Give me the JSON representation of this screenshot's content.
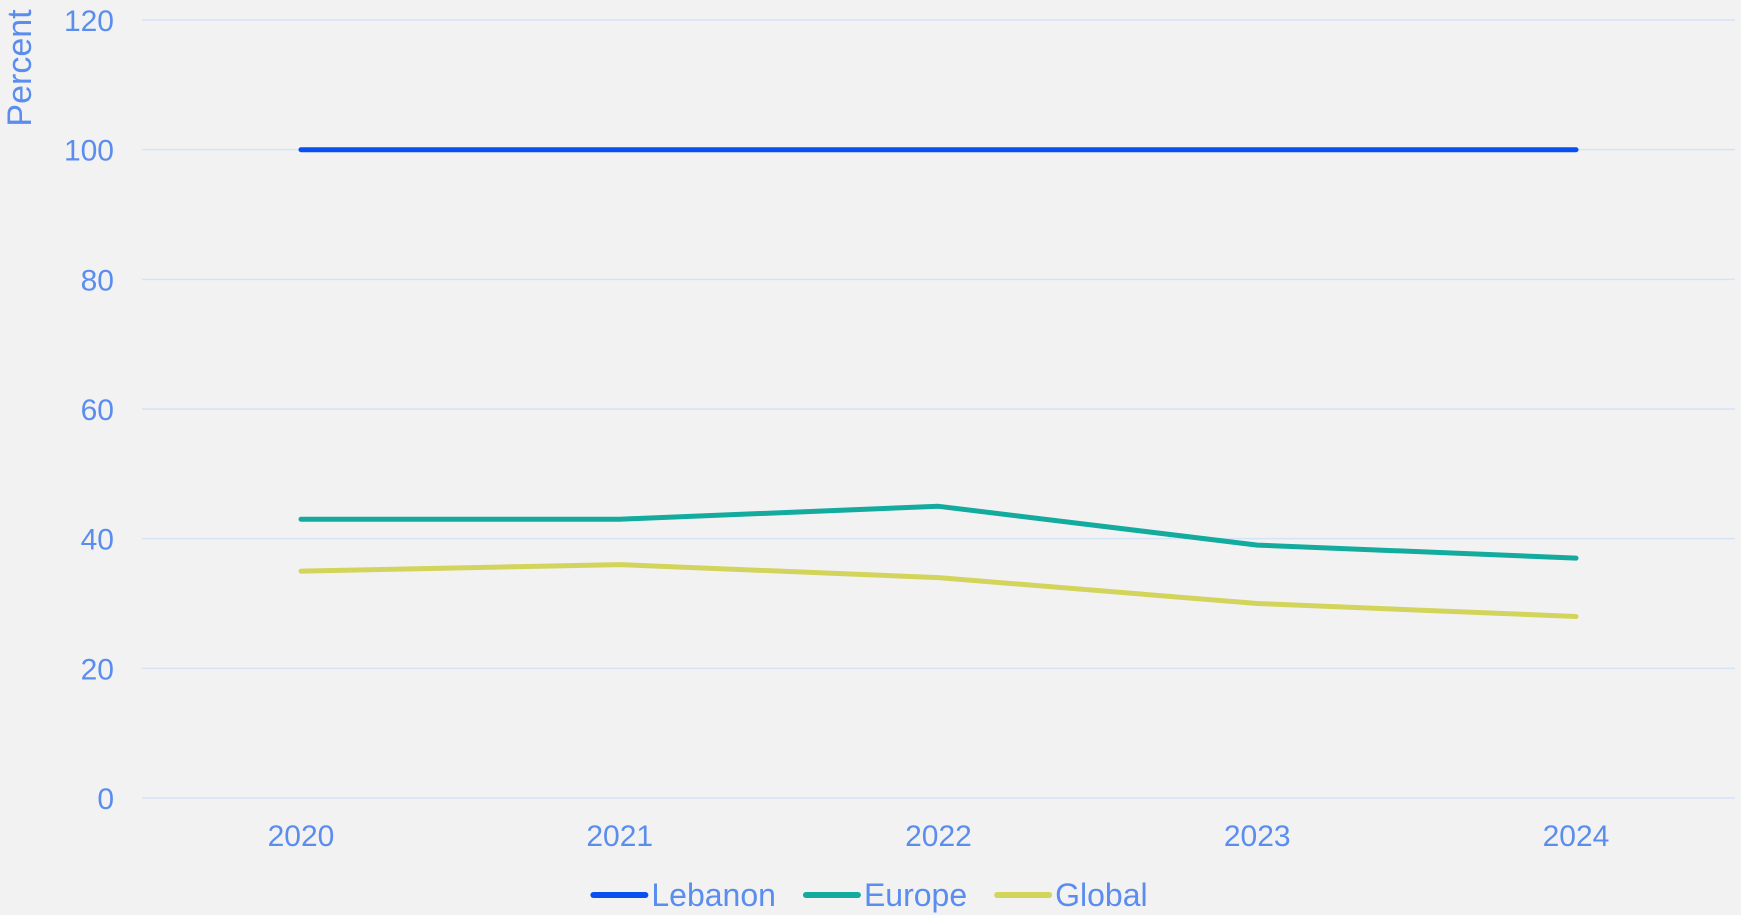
{
  "chart_data": {
    "type": "line",
    "title": "",
    "xlabel": "",
    "ylabel": "Percent",
    "ylim": [
      0,
      120
    ],
    "yticks": [
      0,
      20,
      40,
      60,
      80,
      100,
      120
    ],
    "categories": [
      "2020",
      "2021",
      "2022",
      "2023",
      "2024"
    ],
    "grid": true,
    "legend_position": "bottom",
    "series": [
      {
        "name": "Lebanon",
        "color": "#0a4ff0",
        "values": [
          100,
          100,
          100,
          100,
          100
        ]
      },
      {
        "name": "Europe",
        "color": "#12ab9e",
        "values": [
          43,
          43,
          45,
          39,
          37
        ]
      },
      {
        "name": "Global",
        "color": "#d2d45c",
        "values": [
          35,
          36,
          34,
          30,
          28
        ]
      }
    ]
  }
}
